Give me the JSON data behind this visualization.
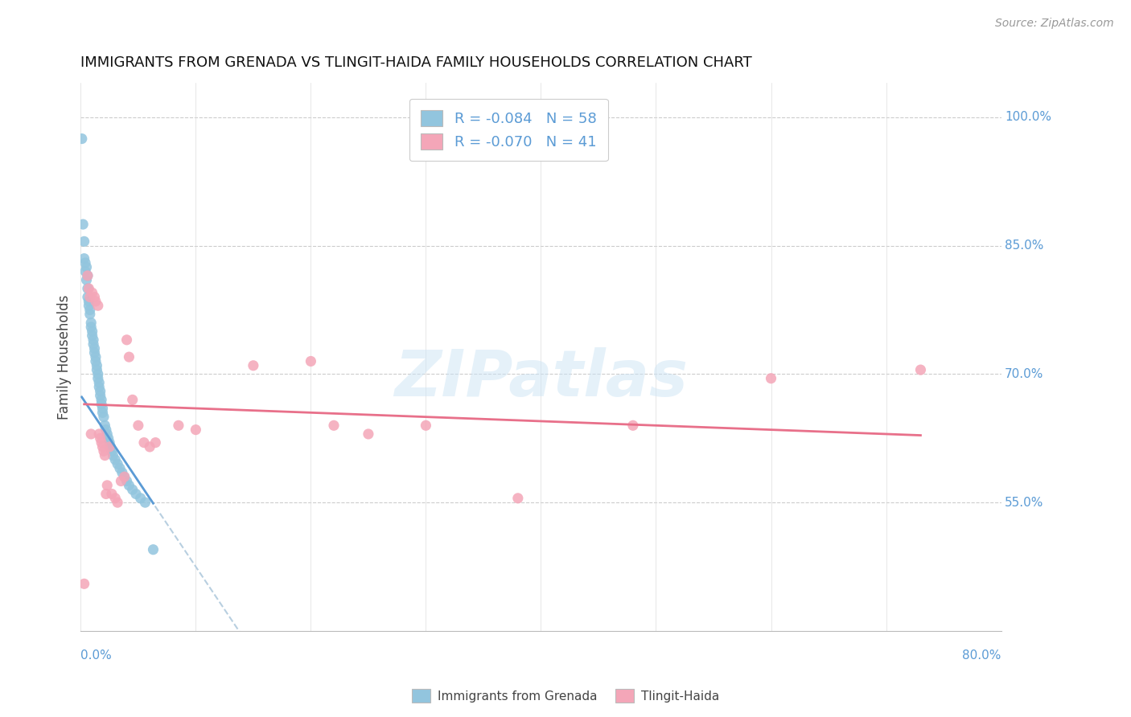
{
  "title": "IMMIGRANTS FROM GRENADA VS TLINGIT-HAIDA FAMILY HOUSEHOLDS CORRELATION CHART",
  "source": "Source: ZipAtlas.com",
  "ylabel": "Family Households",
  "blue_color": "#92c5de",
  "pink_color": "#f4a6b8",
  "trend_blue": "#5b9bd5",
  "trend_pink": "#e8708a",
  "trend_dash": "#b8cfe0",
  "watermark": "ZIPatlas",
  "legend_r1": "R = -0.084",
  "legend_n1": "N = 58",
  "legend_r2": "R = -0.070",
  "legend_n2": "N = 41",
  "blue_scatter_x": [
    0.001,
    0.002,
    0.003,
    0.003,
    0.004,
    0.004,
    0.005,
    0.005,
    0.006,
    0.006,
    0.006,
    0.007,
    0.007,
    0.008,
    0.008,
    0.009,
    0.009,
    0.01,
    0.01,
    0.011,
    0.011,
    0.012,
    0.012,
    0.013,
    0.013,
    0.014,
    0.014,
    0.015,
    0.015,
    0.016,
    0.016,
    0.017,
    0.017,
    0.018,
    0.018,
    0.019,
    0.019,
    0.02,
    0.021,
    0.022,
    0.023,
    0.024,
    0.025,
    0.026,
    0.027,
    0.028,
    0.03,
    0.032,
    0.034,
    0.036,
    0.038,
    0.04,
    0.042,
    0.045,
    0.048,
    0.052,
    0.056,
    0.063
  ],
  "blue_scatter_y": [
    0.975,
    0.875,
    0.855,
    0.835,
    0.83,
    0.82,
    0.825,
    0.81,
    0.815,
    0.8,
    0.79,
    0.785,
    0.78,
    0.775,
    0.77,
    0.76,
    0.755,
    0.75,
    0.745,
    0.74,
    0.735,
    0.73,
    0.725,
    0.72,
    0.715,
    0.71,
    0.705,
    0.7,
    0.695,
    0.69,
    0.685,
    0.68,
    0.675,
    0.67,
    0.665,
    0.66,
    0.655,
    0.65,
    0.64,
    0.635,
    0.63,
    0.625,
    0.62,
    0.615,
    0.61,
    0.605,
    0.6,
    0.595,
    0.59,
    0.585,
    0.58,
    0.575,
    0.57,
    0.565,
    0.56,
    0.555,
    0.55,
    0.495
  ],
  "pink_scatter_x": [
    0.003,
    0.006,
    0.007,
    0.008,
    0.009,
    0.01,
    0.012,
    0.013,
    0.015,
    0.016,
    0.017,
    0.018,
    0.019,
    0.02,
    0.021,
    0.022,
    0.023,
    0.025,
    0.027,
    0.03,
    0.032,
    0.035,
    0.038,
    0.04,
    0.042,
    0.045,
    0.05,
    0.055,
    0.06,
    0.065,
    0.085,
    0.1,
    0.15,
    0.2,
    0.22,
    0.25,
    0.3,
    0.38,
    0.48,
    0.6,
    0.73
  ],
  "pink_scatter_y": [
    0.455,
    0.815,
    0.8,
    0.79,
    0.63,
    0.795,
    0.79,
    0.785,
    0.78,
    0.63,
    0.625,
    0.62,
    0.615,
    0.61,
    0.605,
    0.56,
    0.57,
    0.615,
    0.56,
    0.555,
    0.55,
    0.575,
    0.58,
    0.74,
    0.72,
    0.67,
    0.64,
    0.62,
    0.615,
    0.62,
    0.64,
    0.635,
    0.71,
    0.715,
    0.64,
    0.63,
    0.64,
    0.555,
    0.64,
    0.695,
    0.705
  ],
  "xlim": [
    0.0,
    0.8
  ],
  "ylim": [
    0.4,
    1.04
  ],
  "ytick_labels": {
    "1.00": "100.0%",
    "0.85": "85.0%",
    "0.70": "70.0%",
    "0.55": "55.0%"
  },
  "ytick_vals": [
    0.55,
    0.7,
    0.85,
    1.0
  ],
  "xtick_minor": [
    0.0,
    0.1,
    0.2,
    0.3,
    0.4,
    0.5,
    0.6,
    0.7,
    0.8
  ]
}
